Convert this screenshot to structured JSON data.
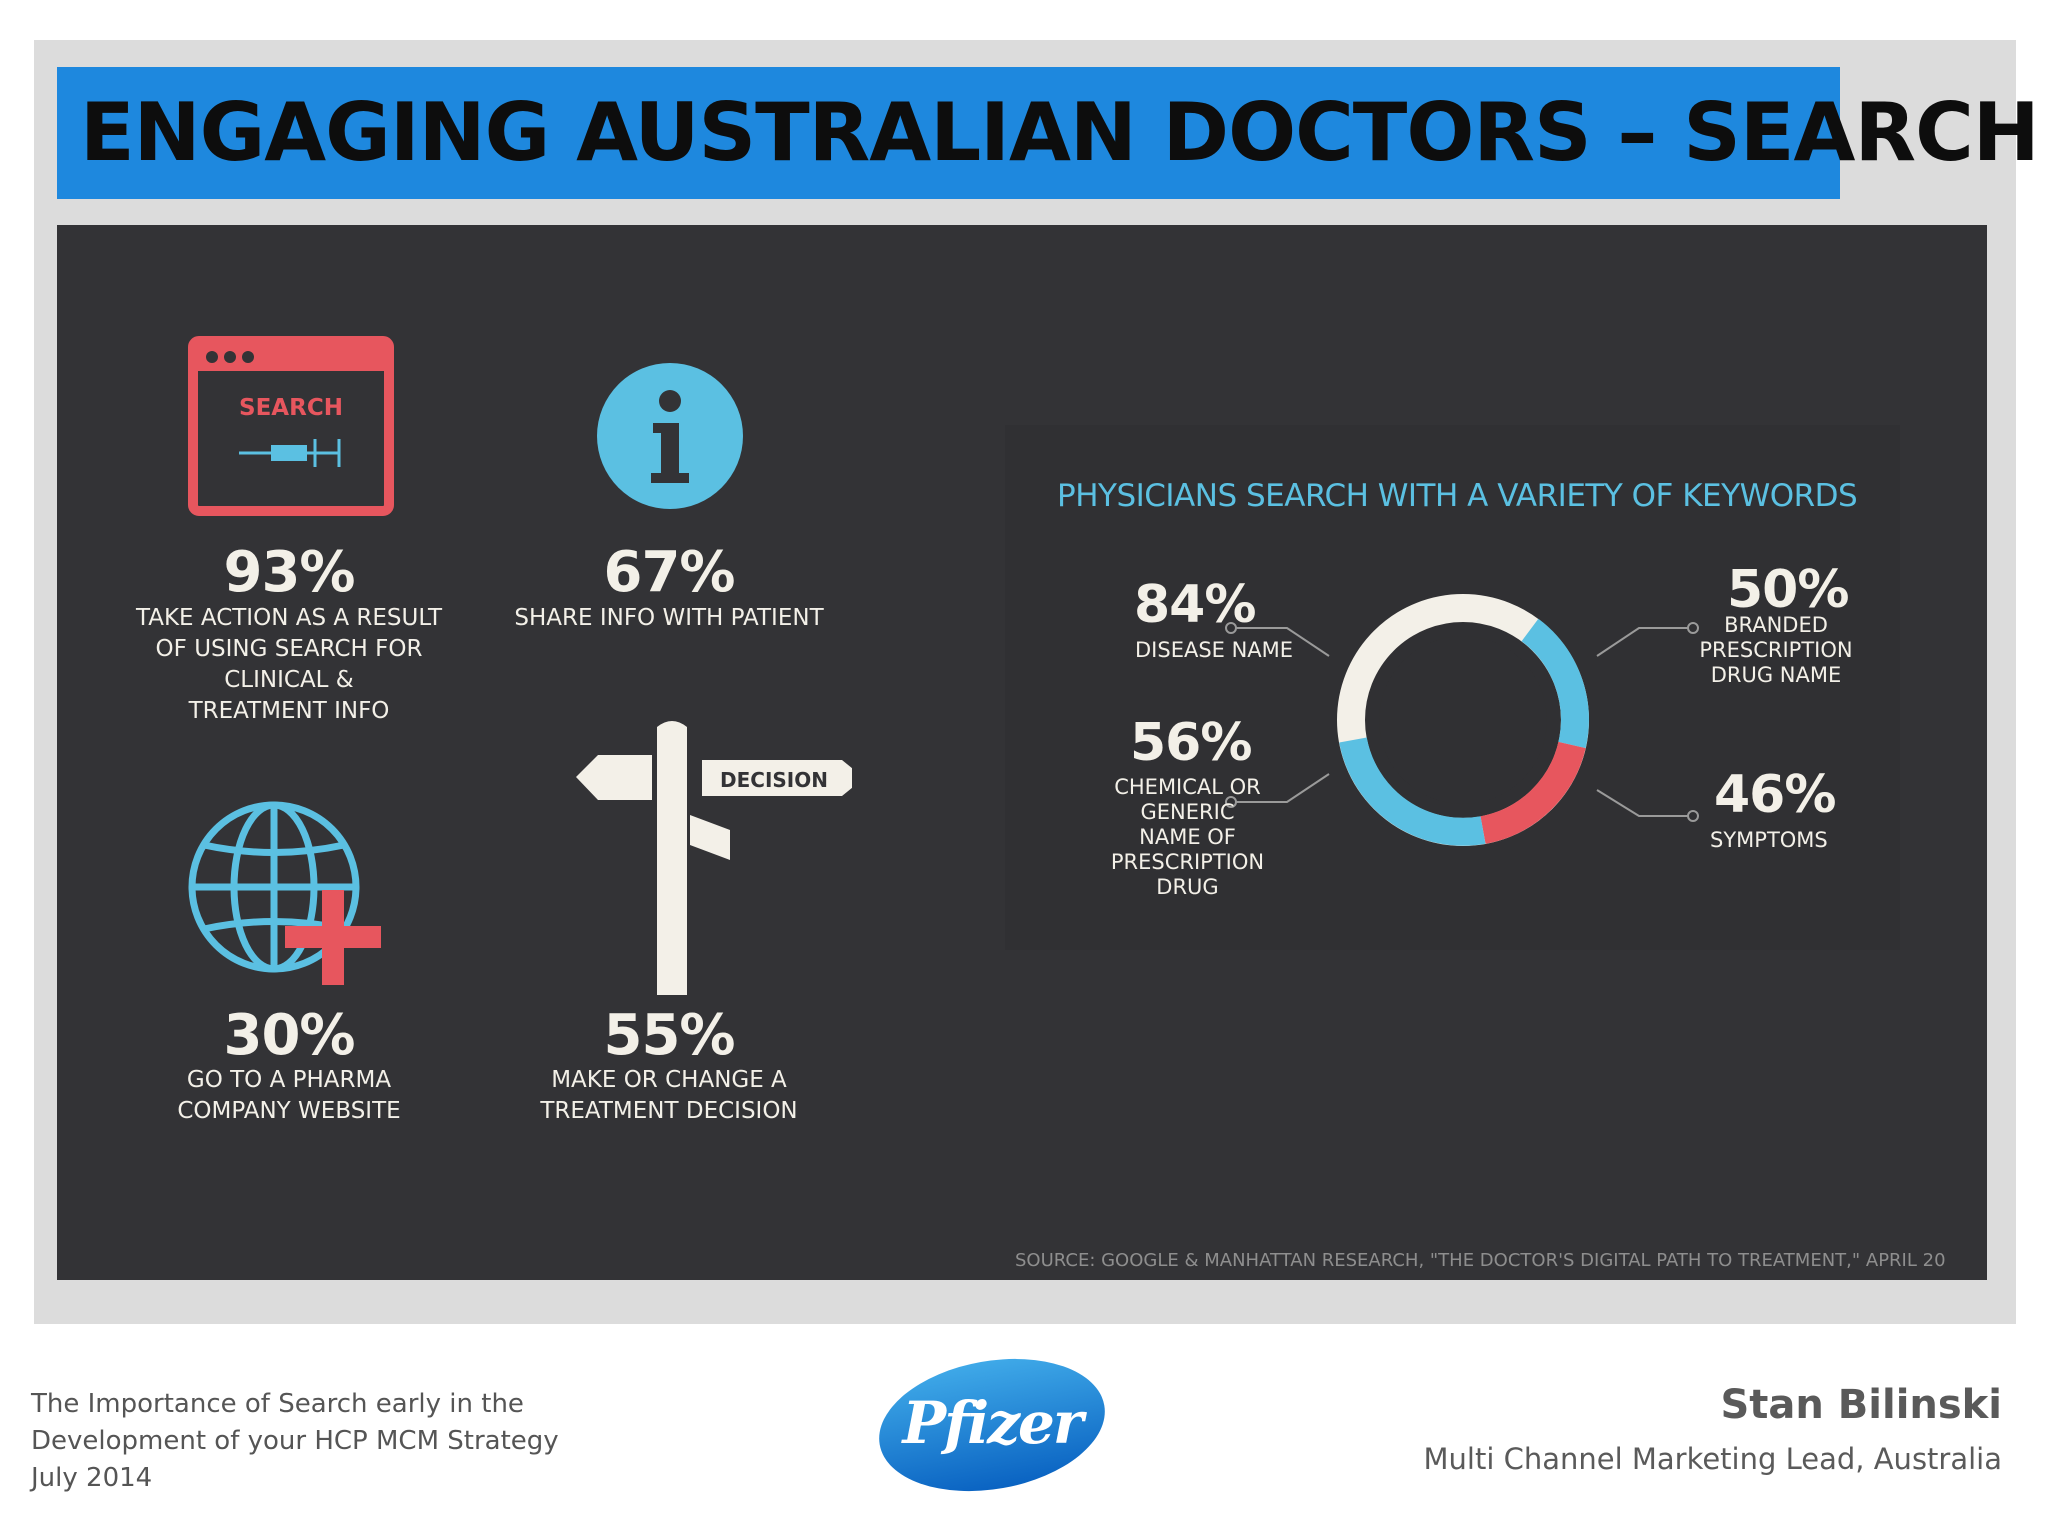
{
  "slide": {
    "title": "ENGAGING AUSTRALIAN DOCTORS – SEARCH"
  },
  "infographic": {
    "stats": [
      {
        "value": "93%",
        "caption": [
          "TAKE ACTION AS A RESULT",
          "OF USING SEARCH FOR",
          "CLINICAL &",
          "TREATMENT INFO"
        ],
        "icon": "browser-search-icon"
      },
      {
        "value": "67%",
        "caption": [
          "SHARE INFO WITH PATIENT"
        ],
        "icon": "info-icon"
      },
      {
        "value": "30%",
        "caption": [
          "GO TO A PHARMA",
          "COMPANY WEBSITE"
        ],
        "icon": "globe-plus-icon"
      },
      {
        "value": "55%",
        "caption": [
          "MAKE OR CHANGE A",
          "TREATMENT DECISION"
        ],
        "icon": "signpost-icon"
      }
    ],
    "search_icon_label": "SEARCH",
    "signpost_label": "DECISION",
    "keywords": {
      "title": "PHYSICIANS SEARCH WITH A VARIETY OF KEYWORDS",
      "items": [
        {
          "value": "84%",
          "caption": [
            "DISEASE NAME"
          ]
        },
        {
          "value": "56%",
          "caption": [
            "CHEMICAL OR",
            "GENERIC",
            "NAME OF",
            "PRESCRIPTION",
            "DRUG"
          ]
        },
        {
          "value": "50%",
          "caption": [
            "BRANDED",
            "PRESCRIPTION",
            "DRUG NAME"
          ]
        },
        {
          "value": "46%",
          "caption": [
            "SYMPTOMS"
          ]
        }
      ]
    },
    "source": "SOURCE: GOOGLE & MANHATTAN RESEARCH, \"THE DOCTOR'S DIGITAL PATH TO TREATMENT,\" APRIL 20"
  },
  "footer": {
    "lines": [
      "The Importance of Search early in the",
      "Development of your HCP MCM Strategy",
      "July 2014"
    ],
    "name": "Stan Bilinski",
    "role": "Multi Channel Marketing Lead, Australia",
    "logo_text": "Pfizer"
  },
  "colors": {
    "title_bar": "#1e88de",
    "panel": "#333336",
    "accent_red": "#e7565e",
    "accent_blue": "#5bc0e2",
    "cream": "#f3f0e8"
  }
}
